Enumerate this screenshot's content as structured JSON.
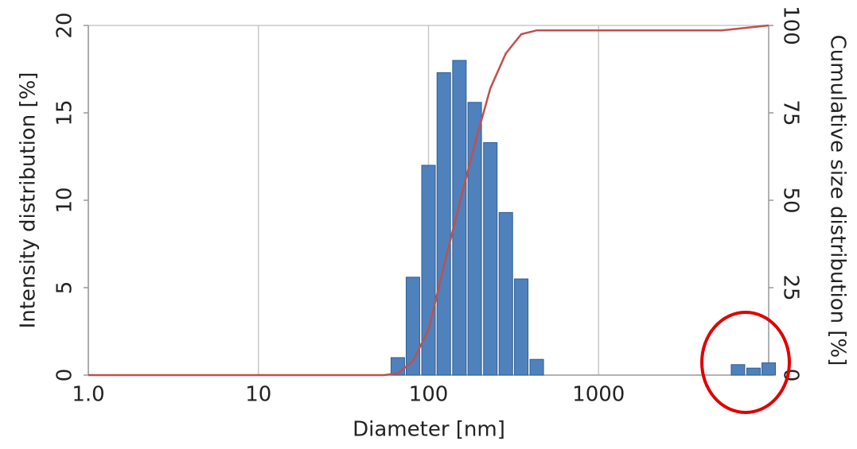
{
  "chart_data": {
    "type": "bar",
    "xlabel": "Diameter [nm]",
    "ylabel": "Intensity distribution [%]",
    "y2label": "Cumulative size distribution [%]",
    "xscale": "log",
    "grid": "x",
    "xlim": [
      1,
      10000
    ],
    "xticks": [
      {
        "value": 1,
        "label": "1.0"
      },
      10,
      100,
      1000
    ],
    "ylim": [
      0,
      20
    ],
    "yticks": [
      0,
      5,
      10,
      15,
      20
    ],
    "y2lim": [
      0,
      100
    ],
    "y2ticks": [
      0,
      25,
      50,
      75,
      100
    ],
    "x": [
      66,
      81,
      100,
      123,
      152,
      187,
      231,
      285,
      351,
      433,
      6600,
      8150,
      10000
    ],
    "series": [
      {
        "type": "bar",
        "color": "#4f81bd",
        "values": [
          1.0,
          5.6,
          12.0,
          17.3,
          18.0,
          15.6,
          13.3,
          9.3,
          5.5,
          0.9,
          0.6,
          0.4,
          0.7
        ]
      },
      {
        "type": "line",
        "axis": "y2",
        "color": "#c0504d",
        "x": [
          1,
          55,
          66,
          81,
          100,
          123,
          152,
          187,
          231,
          285,
          351,
          433,
          5300,
          10000
        ],
        "values": [
          0,
          0,
          0.5,
          4,
          13,
          31,
          49,
          66,
          82,
          92,
          97.5,
          98.6,
          98.6,
          100
        ]
      }
    ]
  }
}
